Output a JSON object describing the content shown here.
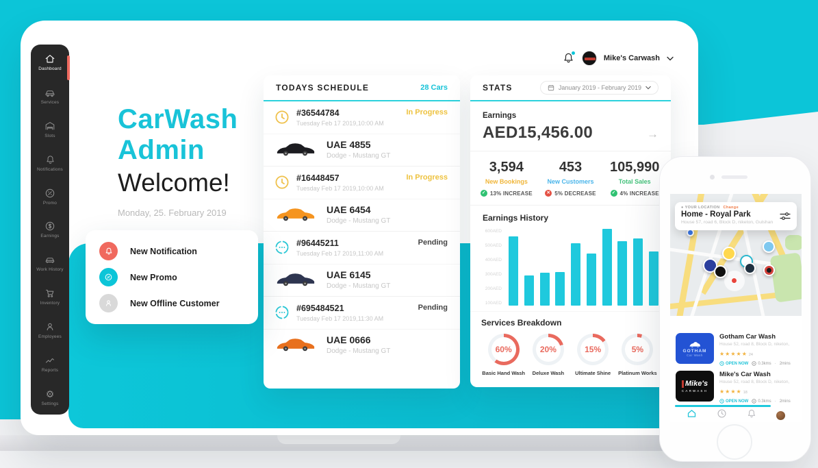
{
  "colors": {
    "teal": "#0cc5d8",
    "salmon": "#f0695e",
    "yellow": "#eec23f",
    "chart_bar": "#1fc9dd",
    "donut_ring": "#e96a5e",
    "green": "#2fc272",
    "red": "#e45044",
    "sidebar_bg": "#282828"
  },
  "header": {
    "account_name": "Mike's Carwash"
  },
  "sidebar": {
    "items": [
      {
        "label": "Dashboard",
        "icon": "home-icon",
        "active": true
      },
      {
        "label": "Services",
        "icon": "car-icon",
        "active": false
      },
      {
        "label": "Slots",
        "icon": "garage-icon",
        "active": false
      },
      {
        "label": "Notifications",
        "icon": "bell-icon",
        "active": false
      },
      {
        "label": "Promo",
        "icon": "percent-icon",
        "active": false
      },
      {
        "label": "Earnings",
        "icon": "dollar-icon",
        "active": false
      },
      {
        "label": "Work History",
        "icon": "history-car-icon",
        "active": false
      },
      {
        "label": "Inventory",
        "icon": "cart-icon",
        "active": false
      },
      {
        "label": "Employees",
        "icon": "person-icon",
        "active": false
      },
      {
        "label": "Reports",
        "icon": "chart-icon",
        "active": false
      },
      {
        "label": "Settings",
        "icon": "gear-icon",
        "active": false
      }
    ]
  },
  "welcome": {
    "brand_line1": "CarWash",
    "brand_line2": "Admin",
    "greeting": "Welcome!",
    "date": "Monday, 25. February 2019"
  },
  "quick_actions": {
    "items": [
      {
        "label": "New Notification",
        "icon": "bell-icon",
        "color": "#f0695e"
      },
      {
        "label": "New Promo",
        "icon": "percent-icon",
        "color": "#0cc5d8"
      },
      {
        "label": "New Offline Customer",
        "icon": "person-icon",
        "color": "#d9d9d9"
      }
    ]
  },
  "schedule": {
    "title": "TODAYS SCHEDULE",
    "count_label": "28 Cars",
    "rows": [
      {
        "id": "#36544784",
        "datetime": "Tuesday Feb 17 2019,10:00 AM",
        "status": "In Progress",
        "status_type": "progress",
        "plate": "UAE 4855",
        "model": "Dodge - Mustang GT",
        "car_color": "#1c1c20"
      },
      {
        "id": "#16448457",
        "datetime": "Tuesday Feb 17 2019,10:00 AM",
        "status": "In Progress",
        "status_type": "progress",
        "plate": "UAE 6454",
        "model": "Dodge - Mustang GT",
        "car_color": "#f5941f"
      },
      {
        "id": "#96445211",
        "datetime": "Tuesday Feb 17 2019,11:00 AM",
        "status": "Pending",
        "status_type": "pending",
        "plate": "UAE 6145",
        "model": "Dodge - Mustang GT",
        "car_color": "#2e3550"
      },
      {
        "id": "#695484521",
        "datetime": "Tuesday Feb 17 2019,11:30 AM",
        "status": "Pending",
        "status_type": "pending",
        "plate": "UAE 0666",
        "model": "Dodge - Mustang GT",
        "car_color": "#e8701d"
      }
    ]
  },
  "stats": {
    "title": "STATS",
    "date_range": "January 2019  -  February 2019",
    "earnings": {
      "label": "Earnings",
      "value": "AED15,456.00"
    },
    "metrics": [
      {
        "value": "3,594",
        "label": "New Bookings",
        "label_color": "#f0b63a",
        "change": "13% INCREASE",
        "direction": "up"
      },
      {
        "value": "453",
        "label": "New Customers",
        "label_color": "#4ab5ea",
        "change": "5% DECREASE",
        "direction": "down"
      },
      {
        "value": "105,990",
        "label": "Total Sales",
        "label_color": "#43c17a",
        "change": "4% INCREASE",
        "direction": "up"
      }
    ],
    "history_title": "Earnings History",
    "services_title": "Services Breakdown"
  },
  "chart_data": [
    {
      "type": "bar",
      "title": "Earnings History",
      "xlabel": "",
      "ylabel": "AED",
      "yticks": [
        "600AED",
        "500AED",
        "400AED",
        "300AED",
        "200AED",
        "100AED"
      ],
      "ylim": [
        0,
        600
      ],
      "values": [
        540,
        235,
        255,
        265,
        490,
        405,
        600,
        505,
        525,
        425
      ],
      "bar_color": "#1fc9dd",
      "grid": false,
      "legend": "none"
    },
    {
      "type": "pie",
      "title": "Services Breakdown",
      "ring_color": "#e96a5e",
      "items": [
        {
          "label": "Basic Hand Wash",
          "value": 60
        },
        {
          "label": "Deluxe Wash",
          "value": 20
        },
        {
          "label": "Ultimate Shine",
          "value": 15
        },
        {
          "label": "Platinum Works",
          "value": 5
        }
      ]
    }
  ],
  "phone": {
    "location_card": {
      "eyebrow": "YOUR LOCATION",
      "change_label": "Change",
      "title": "Home - Royal Park",
      "address": "House 57, road 6, Block D, niketon, Gulshan"
    },
    "listings": [
      {
        "name": "Gotham Car Wash",
        "address": "House 52, road 8, Block D, niketon,",
        "rating": 5,
        "reviews": "24",
        "open_label": "OPEN NOW",
        "distance": "0.3kms",
        "time": "2mins",
        "logo_line1": "GOTHAM",
        "logo_line2": "Car Wash"
      },
      {
        "name": "Mike's Car Wash",
        "address": "House 52, road 8, Block D, niketon,",
        "rating": 4,
        "reviews": "18",
        "open_label": "OPEN NOW",
        "distance": "0.3kms",
        "time": "2mins",
        "logo_line1": "Mike's",
        "logo_line2": "CARWASH"
      }
    ]
  }
}
